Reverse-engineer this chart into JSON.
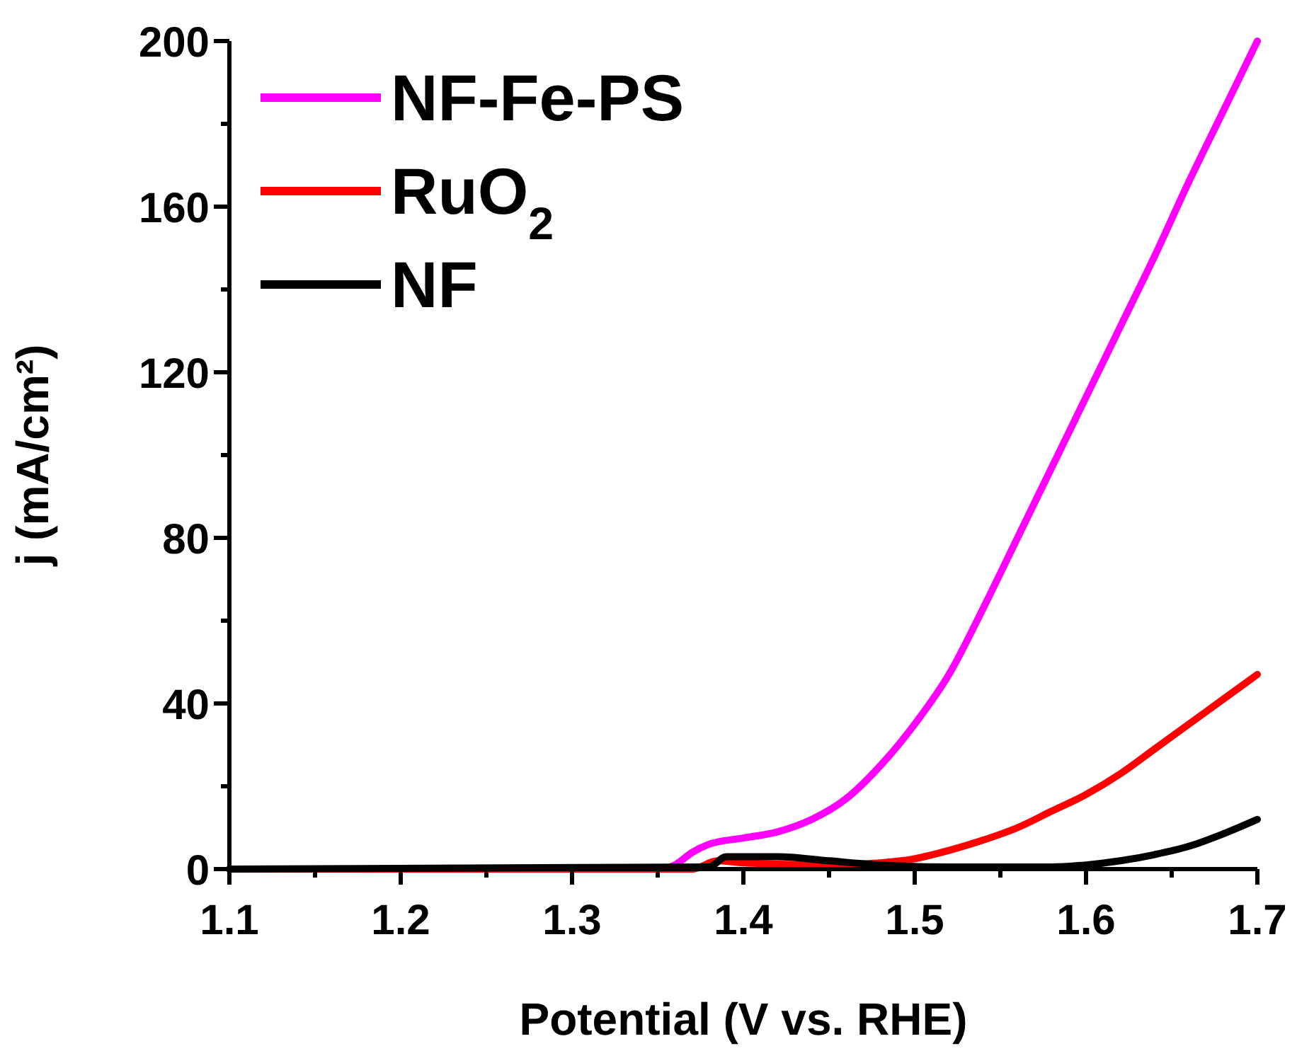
{
  "chart_data": {
    "type": "line",
    "xlabel": "Potential (V vs. RHE)",
    "ylabel": "j (mA/cm²)",
    "xlim": [
      1.1,
      1.7
    ],
    "ylim": [
      0,
      200
    ],
    "xticks": [
      1.1,
      {
        "value": 1.15,
        "label": null
      },
      1.2,
      {
        "value": 1.25,
        "label": null
      },
      1.3,
      {
        "value": 1.35,
        "label": null
      },
      1.4,
      {
        "value": 1.45,
        "label": null
      },
      1.5,
      {
        "value": 1.55,
        "label": null
      },
      1.6,
      {
        "value": 1.65,
        "label": null
      },
      1.7
    ],
    "yticks": [
      0,
      {
        "value": 20,
        "label": null
      },
      40,
      {
        "value": 60,
        "label": null
      },
      80,
      {
        "value": 100,
        "label": null
      },
      120,
      {
        "value": 140,
        "label": null
      },
      160,
      {
        "value": 180,
        "label": null
      },
      200
    ],
    "legend": "top left",
    "grid": false,
    "marker": "none",
    "line_style": "solid",
    "series": [
      {
        "name": "NF-Fe-PS",
        "color": "#ff00ff",
        "x": [
          1.1,
          1.35,
          1.36,
          1.37,
          1.38,
          1.4,
          1.42,
          1.44,
          1.46,
          1.48,
          1.5,
          1.52,
          1.54,
          1.56,
          1.58,
          1.6,
          1.62,
          1.64,
          1.66,
          1.68,
          1.7
        ],
        "values": [
          0,
          0,
          1,
          4,
          6,
          7.5,
          9,
          12,
          17,
          25,
          35,
          47,
          63,
          80,
          97,
          114,
          131,
          148,
          166,
          183,
          200
        ]
      },
      {
        "name": "RuO$_{2}$",
        "color": "#ff0000",
        "x": [
          1.1,
          1.37,
          1.385,
          1.4,
          1.45,
          1.48,
          1.5,
          1.52,
          1.54,
          1.56,
          1.58,
          1.6,
          1.62,
          1.64,
          1.66,
          1.68,
          1.7
        ],
        "values": [
          0,
          0,
          2,
          1.5,
          1,
          1.5,
          2.5,
          4.5,
          7,
          10,
          14,
          18,
          23,
          29,
          35,
          41,
          47
        ]
      },
      {
        "name": "NF",
        "color": "#000000",
        "x": [
          1.1,
          1.38,
          1.39,
          1.42,
          1.45,
          1.48,
          1.52,
          1.58,
          1.6,
          1.62,
          1.64,
          1.66,
          1.68,
          1.7
        ],
        "values": [
          0,
          0.5,
          3,
          3,
          2,
          1,
          0.5,
          0.5,
          1,
          2,
          3.5,
          5.5,
          8.5,
          12
        ]
      }
    ]
  }
}
